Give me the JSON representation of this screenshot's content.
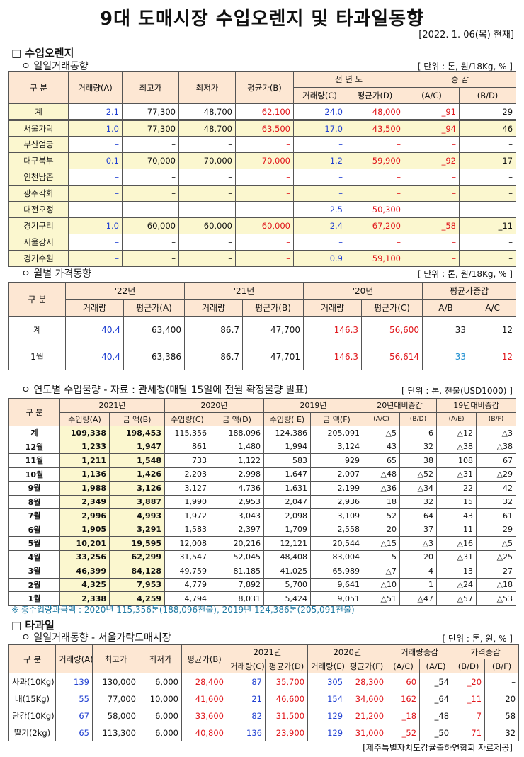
{
  "title": "9대 도매시장 수입오렌지 및 타과일동향",
  "date": "[2022. 1. 06(목) 현재]",
  "sec1_title": "□ 수입오렌지",
  "sub_daily": "ㅇ 일일거래동향",
  "unit1": "[ 단위 : 톤, 원/18Kg, % ]",
  "daily": {
    "h_gu": "구  분",
    "h_vol": "거래량(A)",
    "h_max": "최고가",
    "h_min": "최저가",
    "h_avg": "평균가(B)",
    "h_prev": "전 년 도",
    "h_prev_vol": "거래량(C)",
    "h_prev_avg": "평균가(D)",
    "h_change": "증  감",
    "h_ac": "(A/C)",
    "h_bd": "(B/D)",
    "rows": [
      {
        "name": "계",
        "vol": "2.1",
        "max": "77,300",
        "min": "48,700",
        "avg": "62,100",
        "pvol": "24.0",
        "pavg": "48,000",
        "ac": "_91",
        "bd": "29"
      },
      {
        "name": "서울가락",
        "vol": "1.0",
        "max": "77,300",
        "min": "48,700",
        "avg": "63,500",
        "pvol": "17.0",
        "pavg": "43,500",
        "ac": "_94",
        "bd": "46"
      },
      {
        "name": "부산엄궁",
        "vol": "–",
        "max": "–",
        "min": "–",
        "avg": "–",
        "pvol": "–",
        "pavg": "–",
        "ac": "–",
        "bd": "–"
      },
      {
        "name": "대구북부",
        "vol": "0.1",
        "max": "70,000",
        "min": "70,000",
        "avg": "70,000",
        "pvol": "1.2",
        "pavg": "59,900",
        "ac": "_92",
        "bd": "17"
      },
      {
        "name": "인천남촌",
        "vol": "–",
        "max": "–",
        "min": "–",
        "avg": "–",
        "pvol": "–",
        "pavg": "–",
        "ac": "–",
        "bd": "–"
      },
      {
        "name": "광주각화",
        "vol": "–",
        "max": "–",
        "min": "–",
        "avg": "–",
        "pvol": "–",
        "pavg": "–",
        "ac": "–",
        "bd": "–"
      },
      {
        "name": "대전오정",
        "vol": "–",
        "max": "–",
        "min": "–",
        "avg": "–",
        "pvol": "2.5",
        "pavg": "50,300",
        "ac": "–",
        "bd": "–"
      },
      {
        "name": "경기구리",
        "vol": "1.0",
        "max": "60,000",
        "min": "60,000",
        "avg": "60,000",
        "pvol": "2.4",
        "pavg": "67,200",
        "ac": "_58",
        "bd": "_11"
      },
      {
        "name": "서울강서",
        "vol": "–",
        "max": "–",
        "min": "–",
        "avg": "–",
        "pvol": "–",
        "pavg": "–",
        "ac": "–",
        "bd": "–"
      },
      {
        "name": "경기수원",
        "vol": "–",
        "max": "–",
        "min": "–",
        "avg": "–",
        "pvol": "0.9",
        "pavg": "59,100",
        "ac": "–",
        "bd": "–"
      }
    ]
  },
  "sub_monthly": "ㅇ 월별 가격동향",
  "unit2": "[ 단위 : 톤, 원/18Kg, % ]",
  "monthly": {
    "h_gu": "구  분",
    "y22": "'22년",
    "y21": "'21년",
    "y20": "'20년",
    "h_chg": "평균가증감",
    "h_vol": "거래량",
    "h_avgA": "평균가(A)",
    "h_avgB": "평균가(B)",
    "h_avgC": "평균가(C)",
    "h_ab": "A/B",
    "h_ac": "A/C",
    "rows": [
      {
        "name": "계",
        "v22": "40.4",
        "a22": "63,400",
        "v21": "86.7",
        "a21": "47,700",
        "v20": "146.3",
        "a20": "56,600",
        "ab": "33",
        "ac": "12"
      },
      {
        "name": "1월",
        "v22": "40.4",
        "a22": "63,386",
        "v21": "86.7",
        "a21": "47,701",
        "v20": "146.3",
        "a20": "56,614",
        "ab": "33",
        "ac": "12"
      }
    ]
  },
  "sub_yearly": "ㅇ 연도별 수입물량 - 자료 : 관세청(매달 15일에 전월 확정물량 발표)",
  "unit3": "[ 단위 : 톤, 천불(USD1000) ]",
  "yearly": {
    "h_gu": "구 분",
    "y2021": "2021년",
    "y2020": "2020년",
    "y2019": "2019년",
    "h_c20": "20년대비증감",
    "h_c19": "19년대비증감",
    "h_qA": "수입량(A)",
    "h_amB": "금  액(B)",
    "h_qC": "수입량(C)",
    "h_amD": "금  액(D)",
    "h_qE": "수입량( E)",
    "h_amF": "금  액(F)",
    "h_ac": "(A/C)",
    "h_bd": "(B/D)",
    "h_ae": "(A/E)",
    "h_bf": "(B/F)",
    "rows": [
      {
        "name": "계",
        "a": "109,338",
        "b": "198,453",
        "c": "115,356",
        "d": "188,096",
        "e": "124,386",
        "f": "205,091",
        "ac": "△5",
        "bd": "6",
        "ae": "△12",
        "bf": "△3"
      },
      {
        "name": "12월",
        "a": "1,233",
        "b": "1,947",
        "c": "861",
        "d": "1,480",
        "e": "1,994",
        "f": "3,124",
        "ac": "43",
        "bd": "32",
        "ae": "△38",
        "bf": "△38"
      },
      {
        "name": "11월",
        "a": "1,211",
        "b": "1,548",
        "c": "733",
        "d": "1,122",
        "e": "583",
        "f": "929",
        "ac": "65",
        "bd": "38",
        "ae": "108",
        "bf": "67"
      },
      {
        "name": "10월",
        "a": "1,136",
        "b": "1,426",
        "c": "2,203",
        "d": "2,998",
        "e": "1,647",
        "f": "2,007",
        "ac": "△48",
        "bd": "△52",
        "ae": "△31",
        "bf": "△29"
      },
      {
        "name": "9월",
        "a": "1,988",
        "b": "3,126",
        "c": "3,127",
        "d": "4,736",
        "e": "1,631",
        "f": "2,199",
        "ac": "△36",
        "bd": "△34",
        "ae": "22",
        "bf": "42"
      },
      {
        "name": "8월",
        "a": "2,349",
        "b": "3,887",
        "c": "1,990",
        "d": "2,953",
        "e": "2,047",
        "f": "2,936",
        "ac": "18",
        "bd": "32",
        "ae": "15",
        "bf": "32"
      },
      {
        "name": "7월",
        "a": "2,996",
        "b": "4,993",
        "c": "1,972",
        "d": "3,043",
        "e": "2,098",
        "f": "3,109",
        "ac": "52",
        "bd": "64",
        "ae": "43",
        "bf": "61"
      },
      {
        "name": "6월",
        "a": "1,905",
        "b": "3,291",
        "c": "1,583",
        "d": "2,397",
        "e": "1,709",
        "f": "2,558",
        "ac": "20",
        "bd": "37",
        "ae": "11",
        "bf": "29"
      },
      {
        "name": "5월",
        "a": "10,201",
        "b": "19,595",
        "c": "12,008",
        "d": "20,216",
        "e": "12,121",
        "f": "20,544",
        "ac": "△15",
        "bd": "△3",
        "ae": "△16",
        "bf": "△5"
      },
      {
        "name": "4월",
        "a": "33,256",
        "b": "62,299",
        "c": "31,547",
        "d": "52,045",
        "e": "48,408",
        "f": "83,004",
        "ac": "5",
        "bd": "20",
        "ae": "△31",
        "bf": "△25"
      },
      {
        "name": "3월",
        "a": "46,399",
        "b": "84,128",
        "c": "49,759",
        "d": "81,185",
        "e": "41,025",
        "f": "65,989",
        "ac": "△7",
        "bd": "4",
        "ae": "13",
        "bf": "27"
      },
      {
        "name": "2월",
        "a": "4,325",
        "b": "7,953",
        "c": "4,779",
        "d": "7,892",
        "e": "5,700",
        "f": "9,641",
        "ac": "△10",
        "bd": "1",
        "ae": "△24",
        "bf": "△18"
      },
      {
        "name": "1월",
        "a": "2,338",
        "b": "4,259",
        "c": "4,794",
        "d": "8,031",
        "e": "5,424",
        "f": "9,051",
        "ac": "△51",
        "bd": "△47",
        "ae": "△57",
        "bf": "△53"
      }
    ]
  },
  "note": "※ 총수입량과금액 : 2020년 115,356톤(188,096천불),  2019년 124,386톤(205,091천불)",
  "sec2_title": "□ 타과일",
  "sub_fruit": "ㅇ 일일거래동향 - 서울가락도매시장",
  "unit4": "[ 단위 : 톤, 원, % ]",
  "fruit": {
    "h_gu": "구  분",
    "h_vol": "거래량(A)",
    "h_max": "최고가",
    "h_min": "최저가",
    "h_avg": "평균가(B)",
    "y2021": "2021년",
    "y2020": "2020년",
    "h_volchg": "거래량증감",
    "h_prchg": "가격증감",
    "h_volC": "거래량(C)",
    "h_avgD": "평균가(D)",
    "h_volE": "거래량(E)",
    "h_avgF": "평균가(F)",
    "h_ac": "(A/C)",
    "h_ae": "(A/E)",
    "h_bd": "(B/D)",
    "h_bf": "(B/F)",
    "rows": [
      {
        "name": "사과(10Kg)",
        "a": "139",
        "max": "130,000",
        "min": "6,000",
        "b": "28,400",
        "c": "87",
        "d": "35,700",
        "e": "305",
        "f": "28,300",
        "ac": "60",
        "ae": "_54",
        "bd": "_20",
        "bf": "–"
      },
      {
        "name": "배(15Kg)",
        "a": "55",
        "max": "77,000",
        "min": "10,000",
        "b": "41,600",
        "c": "21",
        "d": "46,600",
        "e": "154",
        "f": "34,600",
        "ac": "162",
        "ae": "_64",
        "bd": "_11",
        "bf": "20"
      },
      {
        "name": "단감(10Kg)",
        "a": "67",
        "max": "58,000",
        "min": "6,000",
        "b": "33,600",
        "c": "82",
        "d": "31,500",
        "e": "129",
        "f": "21,200",
        "ac": "_18",
        "ae": "_48",
        "bd": "7",
        "bf": "58"
      },
      {
        "name": "딸기(2kg)",
        "a": "65",
        "max": "113,300",
        "min": "6,000",
        "b": "40,800",
        "c": "136",
        "d": "23,900",
        "e": "129",
        "f": "31,000",
        "ac": "_52",
        "ae": "_50",
        "bd": "71",
        "bf": "32"
      }
    ]
  },
  "source": "[제주특별자치도감귤출하연합회 자료제공]"
}
